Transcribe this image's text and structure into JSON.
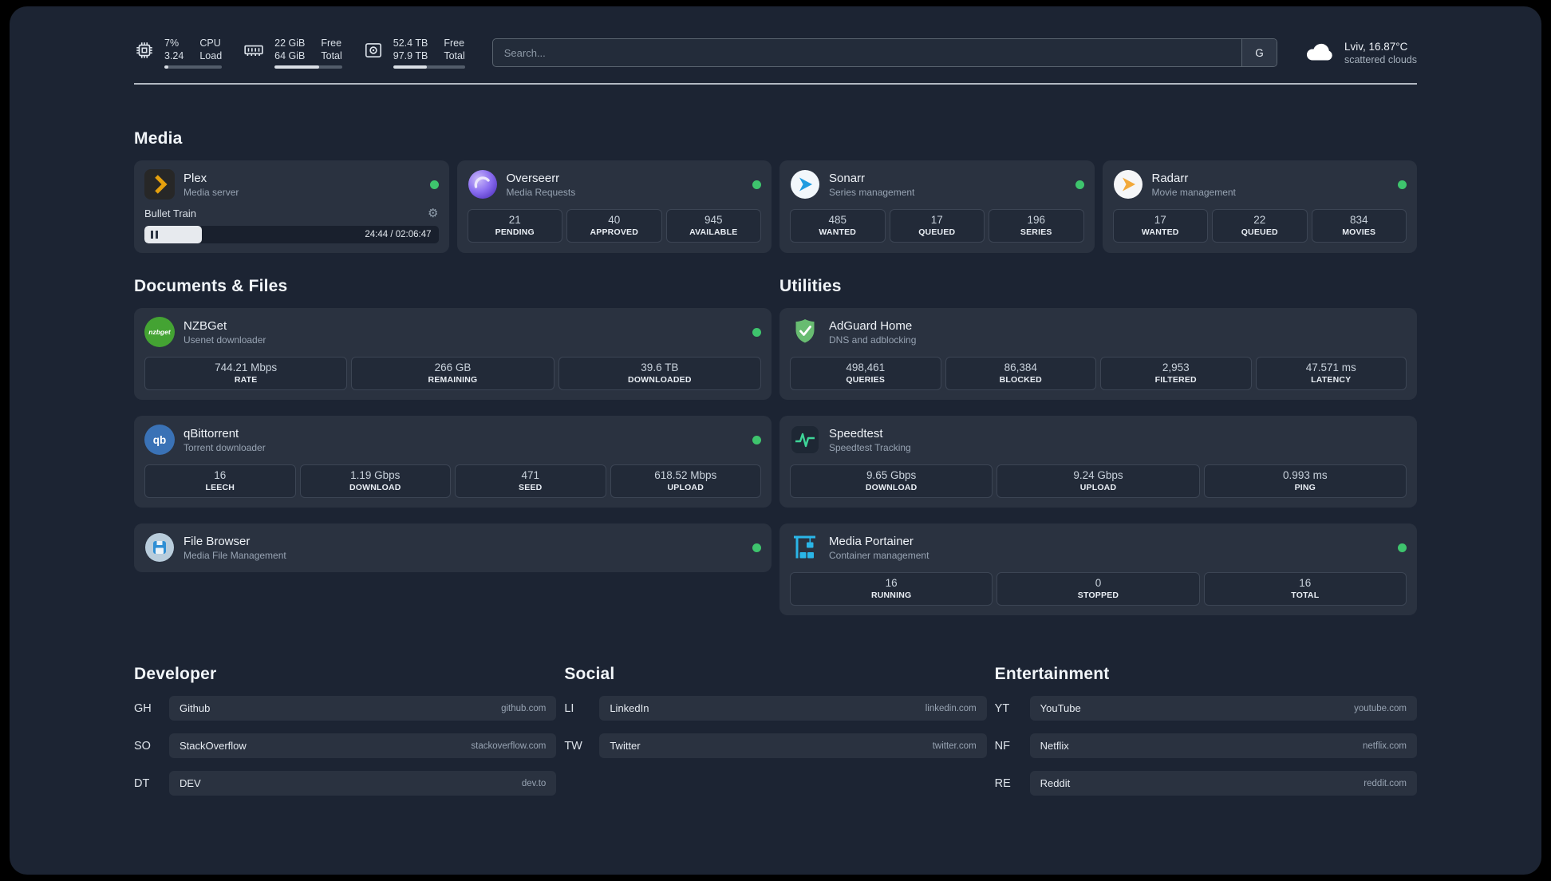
{
  "topbar": {
    "cpu": {
      "value": "7%",
      "load": "3.24",
      "label_top": "CPU",
      "label_bottom": "Load",
      "percent": 7
    },
    "memory": {
      "free": "22 GiB",
      "total": "64 GiB",
      "label_top": "Free",
      "label_bottom": "Total",
      "percent": 66
    },
    "disk": {
      "free": "52.4 TB",
      "total": "97.9 TB",
      "label_top": "Free",
      "label_bottom": "Total",
      "percent": 47
    },
    "search": {
      "placeholder": "Search...",
      "provider_initial": "G"
    },
    "weather": {
      "location": "Lviv, 16.87°C",
      "condition": "scattered clouds"
    }
  },
  "media": {
    "title": "Media",
    "plex": {
      "name": "Plex",
      "subtitle": "Media server",
      "now_playing": "Bullet Train",
      "time": "24:44 / 02:06:47",
      "progress_percent": 19.5
    },
    "overseerr": {
      "name": "Overseerr",
      "subtitle": "Media Requests",
      "stats": [
        {
          "value": "21",
          "label": "PENDING"
        },
        {
          "value": "40",
          "label": "APPROVED"
        },
        {
          "value": "945",
          "label": "AVAILABLE"
        }
      ]
    },
    "sonarr": {
      "name": "Sonarr",
      "subtitle": "Series management",
      "stats": [
        {
          "value": "485",
          "label": "WANTED"
        },
        {
          "value": "17",
          "label": "QUEUED"
        },
        {
          "value": "196",
          "label": "SERIES"
        }
      ]
    },
    "radarr": {
      "name": "Radarr",
      "subtitle": "Movie management",
      "stats": [
        {
          "value": "17",
          "label": "WANTED"
        },
        {
          "value": "22",
          "label": "QUEUED"
        },
        {
          "value": "834",
          "label": "MOVIES"
        }
      ]
    }
  },
  "documents": {
    "title": "Documents & Files",
    "nzbget": {
      "name": "NZBGet",
      "subtitle": "Usenet downloader",
      "stats": [
        {
          "value": "744.21 Mbps",
          "label": "RATE"
        },
        {
          "value": "266 GB",
          "label": "REMAINING"
        },
        {
          "value": "39.6 TB",
          "label": "DOWNLOADED"
        }
      ]
    },
    "qbittorrent": {
      "name": "qBittorrent",
      "subtitle": "Torrent downloader",
      "stats": [
        {
          "value": "16",
          "label": "LEECH"
        },
        {
          "value": "1.19 Gbps",
          "label": "DOWNLOAD"
        },
        {
          "value": "471",
          "label": "SEED"
        },
        {
          "value": "618.52 Mbps",
          "label": "UPLOAD"
        }
      ]
    },
    "filebrowser": {
      "name": "File Browser",
      "subtitle": "Media File Management"
    }
  },
  "utilities": {
    "title": "Utilities",
    "adguard": {
      "name": "AdGuard Home",
      "subtitle": "DNS and adblocking",
      "stats": [
        {
          "value": "498,461",
          "label": "QUERIES"
        },
        {
          "value": "86,384",
          "label": "BLOCKED"
        },
        {
          "value": "2,953",
          "label": "FILTERED"
        },
        {
          "value": "47.571 ms",
          "label": "LATENCY"
        }
      ]
    },
    "speedtest": {
      "name": "Speedtest",
      "subtitle": "Speedtest Tracking",
      "stats": [
        {
          "value": "9.65 Gbps",
          "label": "DOWNLOAD"
        },
        {
          "value": "9.24 Gbps",
          "label": "UPLOAD"
        },
        {
          "value": "0.993 ms",
          "label": "PING"
        }
      ]
    },
    "portainer": {
      "name": "Media Portainer",
      "subtitle": "Container management",
      "stats": [
        {
          "value": "16",
          "label": "RUNNING"
        },
        {
          "value": "0",
          "label": "STOPPED"
        },
        {
          "value": "16",
          "label": "TOTAL"
        }
      ]
    }
  },
  "bookmarks": {
    "developer": {
      "title": "Developer",
      "items": [
        {
          "abbr": "GH",
          "name": "Github",
          "url": "github.com"
        },
        {
          "abbr": "SO",
          "name": "StackOverflow",
          "url": "stackoverflow.com"
        },
        {
          "abbr": "DT",
          "name": "DEV",
          "url": "dev.to"
        }
      ]
    },
    "social": {
      "title": "Social",
      "items": [
        {
          "abbr": "LI",
          "name": "LinkedIn",
          "url": "linkedin.com"
        },
        {
          "abbr": "TW",
          "name": "Twitter",
          "url": "twitter.com"
        }
      ]
    },
    "entertainment": {
      "title": "Entertainment",
      "items": [
        {
          "abbr": "YT",
          "name": "YouTube",
          "url": "youtube.com"
        },
        {
          "abbr": "NF",
          "name": "Netflix",
          "url": "netflix.com"
        },
        {
          "abbr": "RE",
          "name": "Reddit",
          "url": "reddit.com"
        }
      ]
    }
  }
}
